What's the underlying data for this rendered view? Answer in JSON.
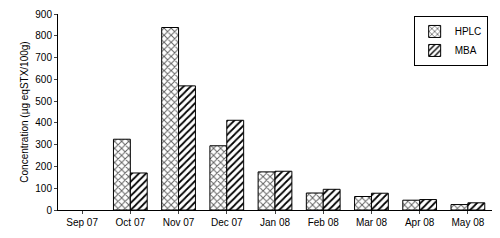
{
  "chart_data": {
    "type": "bar",
    "y_label": "Concentration (µg eqSTX/100g)",
    "categories": [
      "Sep 07",
      "Oct 07",
      "Nov 07",
      "Dec 07",
      "Jan 08",
      "Feb 08",
      "Mar 08",
      "Apr 08",
      "May 08"
    ],
    "series": [
      {
        "name": "HPLC",
        "color": "#606060",
        "marker": "crosshatch",
        "values": [
          null,
          325,
          838,
          295,
          175,
          78,
          62,
          45,
          25
        ]
      },
      {
        "name": "MBA",
        "color": "#000000",
        "marker": "hatch",
        "values": [
          null,
          170,
          570,
          412,
          178,
          95,
          77,
          48,
          33
        ]
      }
    ],
    "ylim": [
      0,
      900
    ],
    "yticks": [
      0,
      100,
      200,
      300,
      400,
      500,
      600,
      700,
      800,
      900
    ],
    "grid": false,
    "legend": "upper right"
  }
}
